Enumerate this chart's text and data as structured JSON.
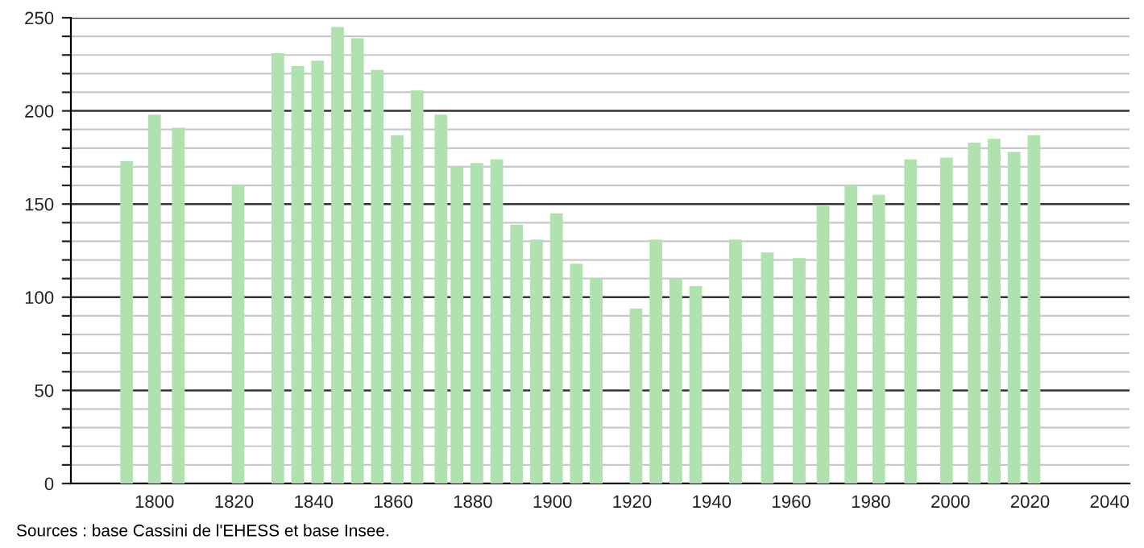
{
  "chart_data": {
    "type": "bar",
    "color": "#b0e2b0",
    "grid": "y",
    "x": [
      1793,
      1800,
      1806,
      1821,
      1831,
      1836,
      1841,
      1846,
      1851,
      1856,
      1861,
      1866,
      1872,
      1876,
      1881,
      1886,
      1891,
      1896,
      1901,
      1906,
      1911,
      1921,
      1926,
      1931,
      1936,
      1946,
      1954,
      1962,
      1968,
      1975,
      1982,
      1990,
      1999,
      2006,
      2011,
      2016,
      2021
    ],
    "values": [
      173,
      198,
      191,
      160,
      231,
      224,
      227,
      245,
      239,
      222,
      187,
      211,
      198,
      170,
      172,
      174,
      139,
      131,
      145,
      118,
      110,
      94,
      131,
      110,
      106,
      131,
      124,
      121,
      149,
      160,
      155,
      174,
      175,
      183,
      185,
      178,
      187
    ],
    "xlim": [
      1779,
      2045
    ],
    "xticks": [
      1800,
      1820,
      1840,
      1860,
      1880,
      1900,
      1920,
      1940,
      1960,
      1980,
      2000,
      2020,
      2040
    ],
    "ylim": [
      0,
      250
    ],
    "yticks": [
      0,
      {
        "value": 10,
        "label": null
      },
      {
        "value": 20,
        "label": null
      },
      {
        "value": 30,
        "label": null
      },
      {
        "value": 40,
        "label": null
      },
      50,
      {
        "value": 60,
        "label": null
      },
      {
        "value": 70,
        "label": null
      },
      {
        "value": 80,
        "label": null
      },
      {
        "value": 90,
        "label": null
      },
      100,
      {
        "value": 110,
        "label": null
      },
      {
        "value": 120,
        "label": null
      },
      {
        "value": 130,
        "label": null
      },
      {
        "value": 140,
        "label": null
      },
      150,
      {
        "value": 160,
        "label": null
      },
      {
        "value": 170,
        "label": null
      },
      {
        "value": 180,
        "label": null
      },
      {
        "value": 190,
        "label": null
      },
      200,
      {
        "value": 210,
        "label": null
      },
      {
        "value": 220,
        "label": null
      },
      {
        "value": 230,
        "label": null
      },
      {
        "value": 240,
        "label": null
      },
      250
    ],
    "annotations": [
      "Sources : base Cassini de l'EHESS et base Insee."
    ]
  }
}
